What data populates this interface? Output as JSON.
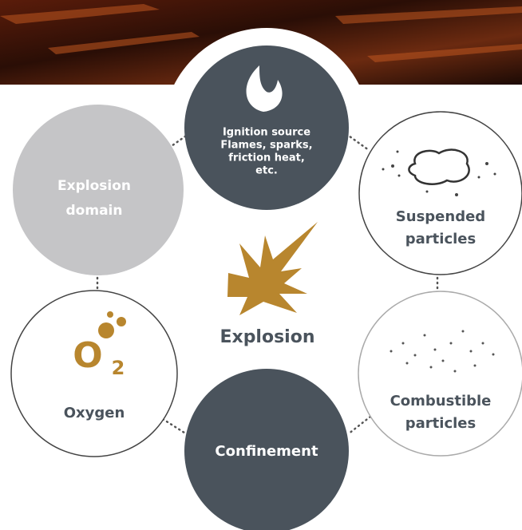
{
  "nodes": [
    {
      "label": [
        "Ignition source",
        "Flames, sparks,",
        "friction heat,",
        "etc."
      ]
    },
    {
      "label": [
        "Explosion",
        "domain"
      ]
    },
    {
      "label": [
        "Suspended",
        "particles"
      ]
    },
    {
      "label": [
        "Oxygen"
      ]
    },
    {
      "label": [
        "Combustible",
        "particles"
      ]
    },
    {
      "label": [
        "Confinement"
      ]
    }
  ],
  "center": {
    "label": "Explosion"
  },
  "oxygen_icon": {
    "symbol": "O",
    "subscript": "2"
  }
}
